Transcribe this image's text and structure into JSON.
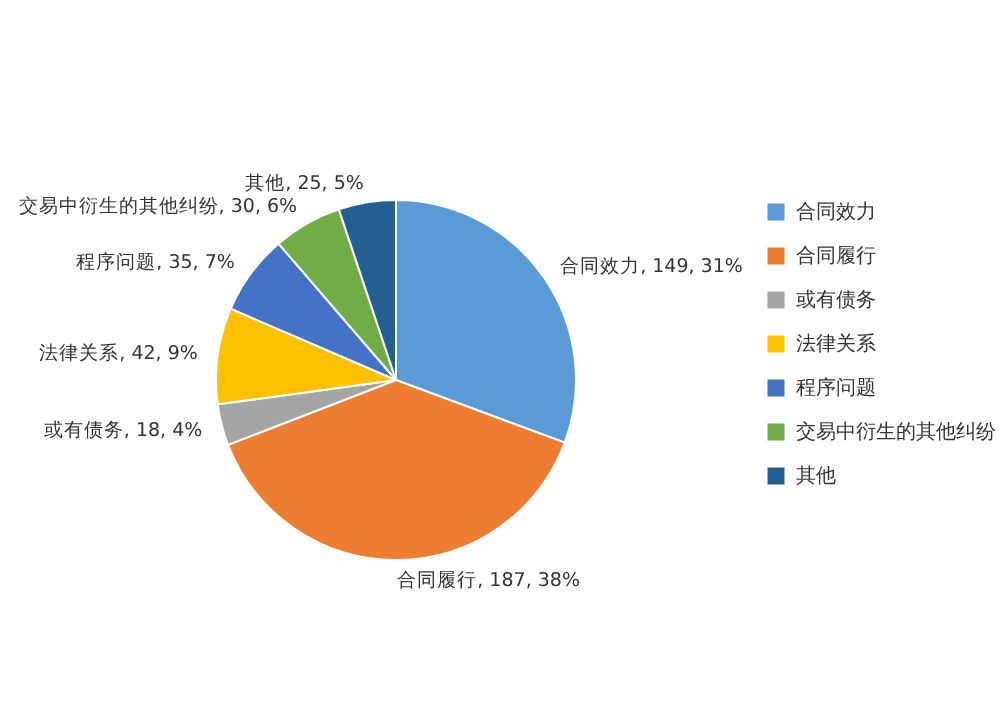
{
  "chart_data": {
    "type": "pie",
    "categories": [
      "合同效力",
      "合同履行",
      "或有债务",
      "法律关系",
      "程序问题",
      "交易中衍生的其他纠纷",
      "其他"
    ],
    "values": [
      149,
      187,
      18,
      42,
      35,
      30,
      25
    ],
    "colors": [
      "#5b9bd5",
      "#ed7d31",
      "#a5a5a5",
      "#ffc000",
      "#4472c4",
      "#70ad47",
      "#255e91"
    ],
    "value_labels": [
      "合同效力, 149, 31%",
      "合同履行, 187, 38%",
      "或有债务, 18, 4%",
      "法律关系, 42, 9%",
      "程序问题, 35, 7%",
      "交易中衍生的其他纠纷, 30, 6%",
      "其他, 25, 5%"
    ],
    "legend": "right"
  }
}
